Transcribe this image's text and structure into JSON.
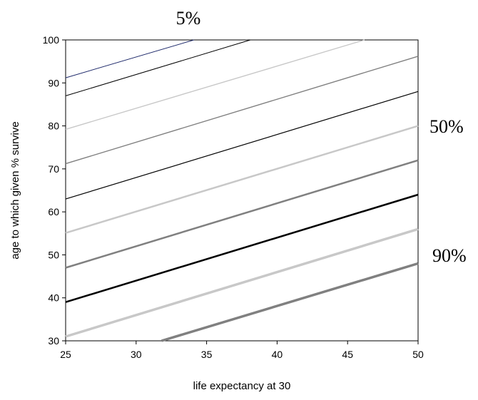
{
  "chart_data": {
    "type": "line",
    "xlabel": "life expectancy at 30",
    "ylabel": "age to which given % survive",
    "xlim": [
      25,
      50
    ],
    "ylim": [
      30,
      100
    ],
    "x_ticks": [
      25,
      30,
      35,
      40,
      45,
      50
    ],
    "y_ticks": [
      30,
      40,
      50,
      60,
      70,
      80,
      90,
      100
    ],
    "grid": false,
    "annotations": [
      {
        "text": "5%",
        "series_index": 0
      },
      {
        "text": "50%",
        "series_index": 5
      },
      {
        "text": "90%",
        "series_index": 9
      }
    ],
    "series": [
      {
        "x": [
          25,
          34.1
        ],
        "values": [
          91.2,
          100
        ],
        "color": "#1f2a6b",
        "width": 1
      },
      {
        "x": [
          25,
          38.1
        ],
        "values": [
          87,
          100
        ],
        "color": "#000000",
        "width": 1
      },
      {
        "x": [
          25,
          46.2
        ],
        "values": [
          79.2,
          100
        ],
        "color": "#c8c8c8",
        "width": 1.4
      },
      {
        "x": [
          25,
          50
        ],
        "values": [
          71.2,
          96.2
        ],
        "color": "#808080",
        "width": 1.4
      },
      {
        "x": [
          25,
          50
        ],
        "values": [
          63,
          88
        ],
        "color": "#000000",
        "width": 1.2
      },
      {
        "x": [
          25,
          50
        ],
        "values": [
          55.1,
          80
        ],
        "color": "#c8c8c8",
        "width": 2.5
      },
      {
        "x": [
          25,
          50
        ],
        "values": [
          47,
          72
        ],
        "color": "#808080",
        "width": 2.5
      },
      {
        "x": [
          25,
          50
        ],
        "values": [
          39,
          64
        ],
        "color": "#000000",
        "width": 2.5
      },
      {
        "x": [
          25,
          50
        ],
        "values": [
          31,
          56
        ],
        "color": "#c8c8c8",
        "width": 3.5
      },
      {
        "x": [
          31.8,
          50
        ],
        "values": [
          30,
          48
        ],
        "color": "#808080",
        "width": 3.5
      }
    ]
  }
}
